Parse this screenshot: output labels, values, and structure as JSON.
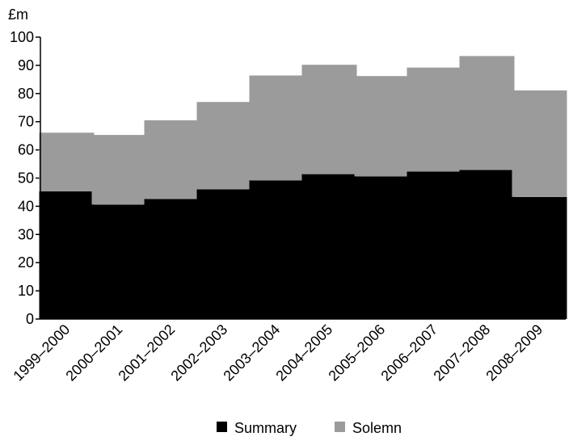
{
  "chart_data": {
    "type": "bar",
    "stacked": true,
    "title": "",
    "xlabel": "",
    "ylabel": "£m",
    "ylim": [
      0,
      100
    ],
    "yticks": [
      0,
      10,
      20,
      30,
      40,
      50,
      60,
      70,
      80,
      90,
      100
    ],
    "grid": false,
    "legend_position": "bottom",
    "categories": [
      "1999–2000",
      "2000–2001",
      "2001–2002",
      "2002–2003",
      "2003–2004",
      "2004–2005",
      "2005–2006",
      "2006–2007",
      "2007–2008",
      "2008–2009"
    ],
    "series": [
      {
        "name": "Summary",
        "color": "#000000",
        "values": [
          45.3,
          40.6,
          42.6,
          46.0,
          49.2,
          51.4,
          50.6,
          52.3,
          52.9,
          43.3
        ]
      },
      {
        "name": "Solemn",
        "color": "#9b9b9c",
        "values": [
          20.8,
          24.7,
          27.9,
          31.0,
          37.2,
          38.8,
          35.6,
          36.9,
          40.4,
          37.8
        ]
      }
    ]
  }
}
